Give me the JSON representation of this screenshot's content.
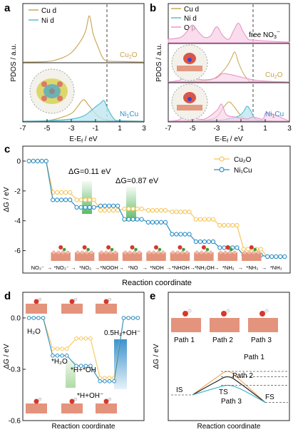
{
  "panels": {
    "a": {
      "letter": "a",
      "legend": [
        {
          "label": "Cu d",
          "color": "#c8a24e"
        },
        {
          "label": "Ni d",
          "color": "#4bb8cf"
        }
      ],
      "ylabel": "PDOS / a.u.",
      "xlabel": "E-E",
      "xlabel_sub": "f",
      "xlabel_unit": " / eV",
      "xticks": [
        "-7",
        "-5",
        "-3",
        "-1",
        "1",
        "3"
      ],
      "labels": [
        {
          "main": "Cu",
          "sub": "2",
          "tail": "O"
        },
        {
          "main": "Ni",
          "sub": "1",
          "tail": "Cu"
        }
      ]
    },
    "b": {
      "letter": "b",
      "legend": [
        {
          "label": "Cu d",
          "color": "#c8a24e"
        },
        {
          "label": "Ni d",
          "color": "#4bb8cf"
        },
        {
          "label": "O p",
          "color": "#e88fc6"
        }
      ],
      "ylabel": "PDOS / a.u.",
      "xlabel": "E-E",
      "xlabel_sub": "f",
      "xlabel_unit": " / eV",
      "xticks": [
        "-7",
        "-5",
        "-3",
        "-1",
        "1",
        "3"
      ],
      "labels": [
        {
          "main": "free NO",
          "sub": "3",
          "tail": "⁻"
        },
        {
          "main": "Cu",
          "sub": "2",
          "tail": "O"
        },
        {
          "main": "Ni",
          "sub": "1",
          "tail": "Cu"
        }
      ]
    },
    "c": {
      "letter": "c",
      "ylabel": "ΔG / eV",
      "xlabel": "Reaction coordinate",
      "yticks": [
        "0",
        "-2",
        "-4",
        "-6"
      ],
      "annotations": [
        "ΔG=0.11 eV",
        "ΔG=0.87 eV"
      ],
      "legend": [
        {
          "label": "Cu₂O",
          "color": "#f6c65c"
        },
        {
          "label": "Ni₁Cu",
          "color": "#2c8ec6"
        }
      ],
      "steps": [
        "NO₃⁻",
        "*NO₃⁻",
        "*NO₂",
        "*NOOH",
        "*NO",
        "*NOH",
        "*NHOH",
        "*NH₂OH",
        "*NH₂",
        "*NH₃",
        "*NH₃"
      ]
    },
    "d": {
      "letter": "d",
      "ylabel": "ΔG / eV",
      "xlabel": "Reaction coordinate",
      "yticks": [
        "0.0",
        "-0.3",
        "-0.6"
      ],
      "species": [
        "H₂O",
        "*H₂O",
        "*H+*OH",
        "*H+OH⁻",
        "0.5H₂+OH⁻"
      ]
    },
    "e": {
      "letter": "e",
      "ylabel": "ΔG / eV",
      "xlabel": "Reaction coordinate",
      "paths": [
        "Path 1",
        "Path 2",
        "Path 3"
      ],
      "states": [
        "IS",
        "TS",
        "FS"
      ]
    }
  },
  "chart_data": [
    {
      "type": "line",
      "panel": "a",
      "xlabel": "E-Ef / eV",
      "ylabel": "PDOS / a.u.",
      "xlim": [
        -7,
        3
      ],
      "fermi_level": 0,
      "series": [
        {
          "name": "Cu d",
          "subpanel": "Cu2O",
          "x": [
            -7,
            -5,
            -4,
            -3,
            -2.2,
            -1.8,
            -1.5,
            -1.2,
            -0.8,
            -0.4,
            0,
            1,
            3
          ],
          "y": [
            0,
            0.01,
            0.06,
            0.18,
            0.42,
            0.62,
            0.9,
            0.55,
            0.3,
            0.08,
            0.02,
            0.01,
            0
          ]
        },
        {
          "name": "Cu d",
          "subpanel": "Ni1Cu",
          "x": [
            -7,
            -5,
            -4,
            -3,
            -2.5,
            -2,
            -1.6,
            -1.2,
            -0.8,
            -0.5,
            0,
            1,
            3
          ],
          "y": [
            0,
            0.01,
            0.06,
            0.15,
            0.28,
            0.42,
            0.32,
            0.2,
            0.1,
            0.05,
            0.02,
            0.01,
            0
          ]
        },
        {
          "name": "Ni d",
          "subpanel": "Ni1Cu",
          "x": [
            -7,
            -5,
            -3,
            -2,
            -1.5,
            -1,
            -0.6,
            -0.3,
            0,
            0.5,
            1,
            3
          ],
          "y": [
            0,
            0.01,
            0.04,
            0.1,
            0.18,
            0.28,
            0.35,
            0.4,
            0.25,
            0.05,
            0.01,
            0
          ]
        }
      ]
    },
    {
      "type": "line",
      "panel": "b",
      "xlabel": "E-Ef / eV",
      "ylabel": "PDOS / a.u.",
      "xlim": [
        -7,
        3
      ],
      "fermi_level": 0,
      "series": [
        {
          "name": "O p",
          "subpanel": "free NO3-",
          "x": [
            -7,
            -6,
            -5.5,
            -5,
            -4.5,
            -4,
            -3.5,
            -3,
            -2.5,
            -2,
            -1.6,
            -1.2,
            -0.8,
            -0.4,
            0,
            1,
            3
          ],
          "y": [
            0.1,
            0.15,
            0.3,
            0.5,
            0.3,
            0.15,
            0.2,
            0.45,
            0.2,
            0.1,
            0.35,
            0.55,
            0.3,
            0.1,
            0.08,
            0.05,
            0.02
          ]
        },
        {
          "name": "Cu d",
          "subpanel": "Cu2O",
          "x": [
            -7,
            -4,
            -3,
            -2.2,
            -1.8,
            -1.5,
            -1.2,
            -0.8,
            -0.4,
            0,
            3
          ],
          "y": [
            0,
            0.03,
            0.12,
            0.35,
            0.55,
            0.7,
            0.45,
            0.2,
            0.05,
            0.01,
            0
          ]
        },
        {
          "name": "O p",
          "subpanel": "Cu2O",
          "x": [
            -7,
            -6,
            -5.5,
            -5,
            -4,
            -3,
            -2.5,
            -1.5,
            -0.5,
            0,
            1,
            3
          ],
          "y": [
            0,
            0.05,
            0.2,
            0.1,
            0.05,
            0.1,
            0.2,
            0.15,
            0.08,
            0.05,
            0.02,
            0
          ]
        },
        {
          "name": "Cu d",
          "subpanel": "Ni1Cu",
          "x": [
            -7,
            -4,
            -3,
            -2.5,
            -2,
            -1.6,
            -1.2,
            -0.8,
            0,
            3
          ],
          "y": [
            0,
            0.02,
            0.1,
            0.3,
            0.45,
            0.35,
            0.2,
            0.08,
            0.01,
            0
          ]
        },
        {
          "name": "Ni d",
          "subpanel": "Ni1Cu",
          "x": [
            -7,
            -3,
            -2,
            -1.2,
            -0.8,
            -0.5,
            -0.2,
            0.2,
            1,
            3
          ],
          "y": [
            0,
            0.02,
            0.06,
            0.12,
            0.22,
            0.35,
            0.25,
            0.05,
            0.01,
            0
          ]
        },
        {
          "name": "O p",
          "subpanel": "Ni1Cu",
          "x": [
            -7,
            -6,
            -5.5,
            -5,
            -4,
            -3,
            -2.6,
            -2.2,
            -1.5,
            -0.5,
            0,
            0.8,
            1.2,
            3
          ],
          "y": [
            0,
            0.05,
            0.3,
            0.1,
            0.05,
            0.25,
            0.4,
            0.15,
            0.1,
            0.05,
            0.1,
            0.05,
            0.2,
            0
          ]
        }
      ]
    },
    {
      "type": "line",
      "panel": "c",
      "xlabel": "Reaction coordinate",
      "ylabel": "ΔG / eV",
      "ylim": [
        -7.5,
        1
      ],
      "categories": [
        "NO₃⁻",
        "*NO₃⁻",
        "*NO₂",
        "*NOOH",
        "*NO",
        "*NOH",
        "*NHOH",
        "*NH₂OH",
        "*NH₂",
        "*NH₃",
        "*NH₃"
      ],
      "series": [
        {
          "name": "Cu₂O",
          "values": [
            0,
            -2.1,
            -2.6,
            -3.3,
            -3.2,
            -3.3,
            -3.4,
            -3.9,
            -4.3,
            -5.9,
            -6.4
          ],
          "color": "#f6c65c"
        },
        {
          "name": "Ni₁Cu",
          "values": [
            0,
            -2.6,
            -3.1,
            -3.0,
            -3.9,
            -4.1,
            -4.9,
            -5.4,
            -5.8,
            -6.3,
            -6.4
          ],
          "color": "#2c8ec6"
        }
      ]
    },
    {
      "type": "line",
      "panel": "d",
      "xlabel": "Reaction coordinate",
      "ylabel": "ΔG / eV",
      "ylim": [
        -0.6,
        0.15
      ],
      "categories": [
        "H₂O",
        "*H₂O",
        "*H+*OH",
        "*H+OH⁻",
        "0.5H₂+OH⁻"
      ],
      "series": [
        {
          "name": "Cu₂O",
          "values": [
            0,
            -0.18,
            -0.12,
            -0.35,
            0
          ],
          "color": "#f6c65c"
        },
        {
          "name": "Ni₁Cu",
          "values": [
            0,
            -0.22,
            -0.28,
            -0.37,
            0
          ],
          "color": "#2c8ec6"
        }
      ]
    },
    {
      "type": "line",
      "panel": "e",
      "xlabel": "Reaction coordinate",
      "ylabel": "ΔG / eV",
      "series": [
        {
          "name": "Path 1",
          "values": [
            0,
            0.22,
            -0.07
          ]
        },
        {
          "name": "Path 2",
          "values": [
            0,
            0.17,
            -0.07
          ]
        },
        {
          "name": "Path 3",
          "values": [
            0,
            0.09,
            -0.07
          ]
        }
      ]
    }
  ]
}
